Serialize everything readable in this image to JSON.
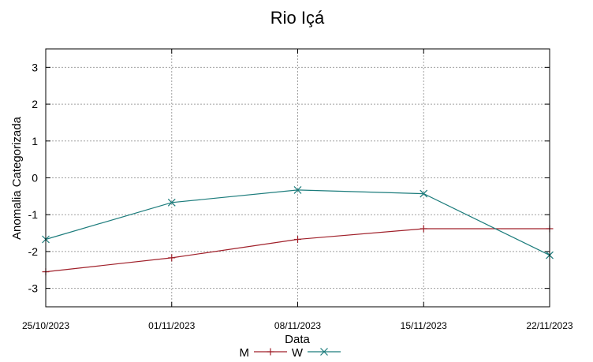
{
  "chart_data": {
    "type": "line",
    "title": "Rio Içá",
    "xlabel": "Data",
    "ylabel": "Anomalia Categorizada",
    "categories": [
      "25/10/2023",
      "01/11/2023",
      "08/11/2023",
      "15/11/2023",
      "22/11/2023"
    ],
    "ylim": [
      -3.5,
      3.5
    ],
    "yticks": [
      "3",
      "2",
      "1",
      "0",
      "-1",
      "-2",
      "-3"
    ],
    "grid": true,
    "legend_position": "bottom",
    "series": [
      {
        "name": "M",
        "color": "#a0202a",
        "marker": "plus",
        "values": [
          -2.55,
          -2.17,
          -1.67,
          -1.38,
          -1.38
        ]
      },
      {
        "name": "W",
        "color": "#1c7c7c",
        "marker": "cross",
        "values": [
          -1.67,
          -0.67,
          -0.33,
          -0.43,
          -2.1
        ]
      }
    ]
  }
}
